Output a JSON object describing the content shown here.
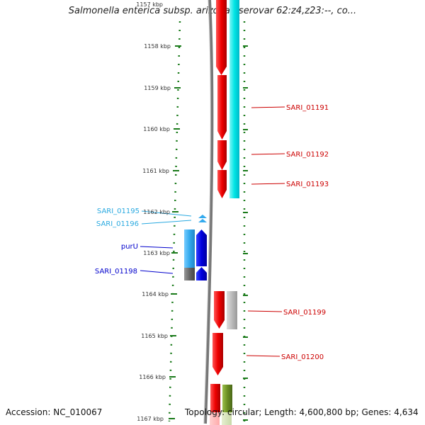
{
  "title": "Salmonella enterica subsp. arizonae serovar 62:z4,z23:--, co...",
  "footer": {
    "accession": "Accession: NC_010067",
    "summary": "Topology: circular; Length: 4,600,800 bp; Genes: 4,634"
  },
  "ticks": [
    {
      "label": "1157 kbp",
      "kbp": 1157
    },
    {
      "label": "1158 kbp",
      "kbp": 1158
    },
    {
      "label": "1159 kbp",
      "kbp": 1159
    },
    {
      "label": "1160 kbp",
      "kbp": 1160
    },
    {
      "label": "1161 kbp",
      "kbp": 1161
    },
    {
      "label": "1162 kbp",
      "kbp": 1162
    },
    {
      "label": "1163 kbp",
      "kbp": 1163
    },
    {
      "label": "1164 kbp",
      "kbp": 1164
    },
    {
      "label": "1165 kbp",
      "kbp": 1165
    },
    {
      "label": "1166 kbp",
      "kbp": 1166
    },
    {
      "label": "1167 kbp",
      "kbp": 1167
    }
  ],
  "gene_labels": [
    {
      "text": "SARI_01191",
      "color": "#cc0000",
      "side": "right"
    },
    {
      "text": "SARI_01192",
      "color": "#cc0000",
      "side": "right"
    },
    {
      "text": "SARI_01193",
      "color": "#cc0000",
      "side": "right"
    },
    {
      "text": "SARI_01195",
      "color": "#29a9e0",
      "side": "left"
    },
    {
      "text": "SARI_01196",
      "color": "#29a9e0",
      "side": "left"
    },
    {
      "text": "purU",
      "color": "#0000cc",
      "side": "left"
    },
    {
      "text": "SARI_01198",
      "color": "#0000cc",
      "side": "left"
    },
    {
      "text": "SARI_01199",
      "color": "#cc0000",
      "side": "right"
    },
    {
      "text": "SARI_01200",
      "color": "#cc0000",
      "side": "right"
    }
  ],
  "colors": {
    "tick": "#1a7a1a",
    "genome_line": "#888888",
    "red_gene": "#ee0000",
    "cyan_gene": "#00e5e5",
    "light_blue_gene": "#33aaee",
    "dark_blue_gene": "#0000dd",
    "grey_gene": "#bbbbbb",
    "olive_gene": "#6b8e23"
  }
}
